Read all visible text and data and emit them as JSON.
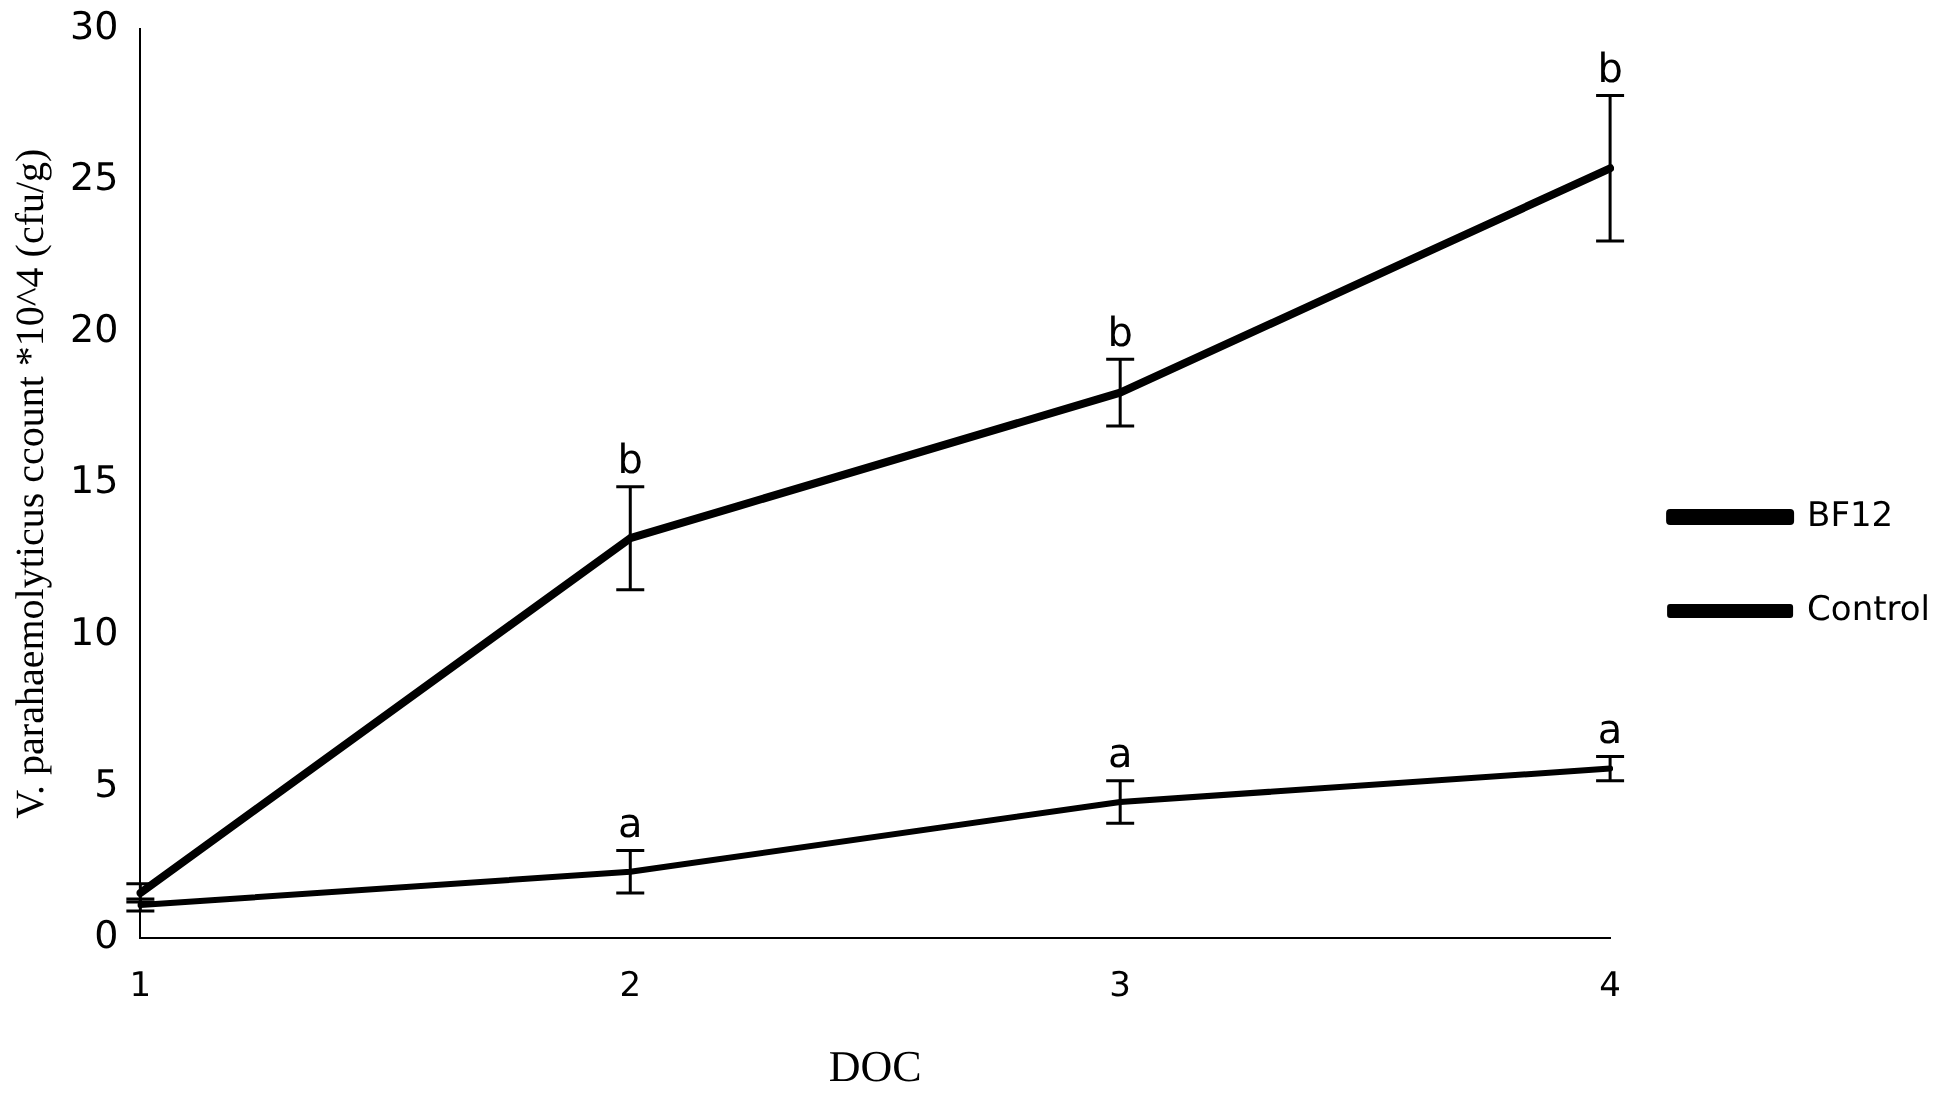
{
  "chart_data": {
    "type": "line",
    "xlabel": "DOC",
    "ylabel": "V. parahaemolyticus ccount *10^4 (cfu/g)",
    "categories": [
      "1",
      "2",
      "3",
      "4"
    ],
    "series": [
      {
        "name": "BF12",
        "color": "#000000",
        "values": [
          1.5,
          13.2,
          18.0,
          25.4
        ],
        "errors": [
          0.3,
          1.7,
          1.1,
          2.4
        ]
      },
      {
        "name": "Control",
        "color": "#000000",
        "values": [
          1.1,
          2.2,
          4.5,
          5.6
        ],
        "errors": [
          0.2,
          0.7,
          0.7,
          0.4
        ]
      }
    ],
    "annotations": [
      {
        "text": "b",
        "x": "2",
        "y": 14.9
      },
      {
        "text": "b",
        "x": "3",
        "y": 19.1
      },
      {
        "text": "b",
        "x": "4",
        "y": 27.8
      },
      {
        "text": "a",
        "x": "2",
        "y": 2.9
      },
      {
        "text": "a",
        "x": "3",
        "y": 5.2
      },
      {
        "text": "a",
        "x": "4",
        "y": 6.0
      }
    ],
    "ylim": [
      0,
      30
    ],
    "yticks": [
      0,
      5,
      10,
      15,
      20,
      25,
      30
    ],
    "grid": false,
    "legend": "right",
    "marker": "none",
    "line_style": "solid"
  }
}
